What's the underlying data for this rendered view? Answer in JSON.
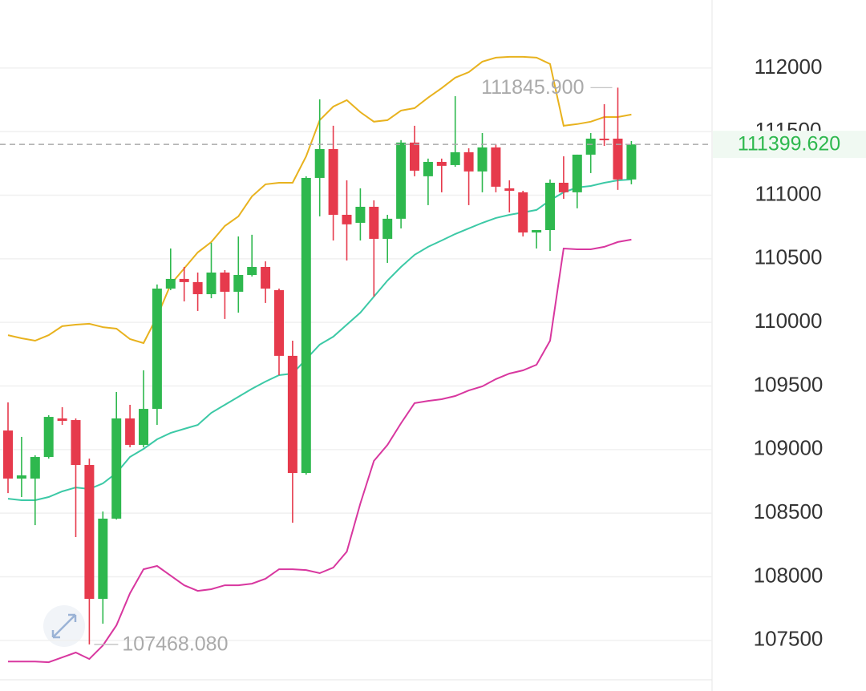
{
  "chart_data": {
    "type": "candlestick",
    "ylim": [
      107190,
      112535
    ],
    "yticks": [
      107500,
      108000,
      108500,
      109000,
      109500,
      110000,
      110500,
      111000,
      111500,
      112000
    ],
    "grid": true,
    "up_color": "#2eb84e",
    "down_color": "#e63a4c",
    "open": [
      109150,
      108772,
      108772,
      108942,
      109245,
      109232,
      108879,
      107826,
      108457,
      109245,
      109037,
      109320,
      110266,
      110342,
      110317,
      110222,
      110392,
      110241,
      110373,
      110436,
      110254,
      109737,
      108816,
      111136,
      111363,
      110846,
      110783,
      110909,
      110657,
      110815,
      111414,
      111149,
      111262,
      111237,
      111338,
      111187,
      111376,
      111054,
      111023,
      110707,
      110726,
      111098,
      111023,
      111319,
      111445,
      111445,
      111124
    ],
    "high": [
      109371,
      109100,
      108955,
      109270,
      109333,
      109245,
      108929,
      108513,
      109453,
      109352,
      109623,
      110298,
      110581,
      110436,
      110392,
      110626,
      110411,
      110676,
      110689,
      110480,
      110266,
      109856,
      111149,
      111754,
      111546,
      111117,
      111054,
      110960,
      110846,
      111433,
      111546,
      111288,
      111288,
      111779,
      111369,
      111489,
      111401,
      111117,
      111035,
      110726,
      111124,
      111306,
      111319,
      111489,
      111716,
      111845.9,
      111426
    ],
    "low": [
      108658,
      108627,
      108406,
      108929,
      109194,
      108312,
      107468.08,
      107631,
      108450,
      109018,
      109018,
      109194,
      110254,
      110165,
      110090,
      110190,
      110027,
      110077,
      110361,
      110153,
      109585,
      108425,
      108803,
      110834,
      110644,
      110487,
      110644,
      110203,
      110468,
      110739,
      111149,
      110922,
      111023,
      111224,
      110922,
      111023,
      111023,
      110865,
      110676,
      110581,
      110562,
      110972,
      110897,
      111174,
      111388,
      111042,
      111086
    ],
    "close": [
      108772,
      108797,
      108942,
      109257,
      109226,
      108879,
      107826,
      108457,
      109245,
      109037,
      109320,
      110266,
      110342,
      110317,
      110222,
      110392,
      110241,
      110373,
      110436,
      110266,
      109737,
      108816,
      111136,
      111363,
      110846,
      110771,
      110909,
      110657,
      110815,
      111414,
      111193,
      111262,
      111231,
      111338,
      111187,
      111376,
      111067,
      111035,
      110707,
      110726,
      111098,
      111023,
      111319,
      111445,
      111433,
      111124,
      111399.62
    ],
    "upper_band": {
      "color": "#e8b21e",
      "values": [
        109900,
        109875,
        109856,
        109900,
        109970,
        109982,
        109989,
        109963,
        109951,
        109869,
        109837,
        110045,
        110298,
        110424,
        110550,
        110632,
        110758,
        110834,
        110991,
        111086,
        111098,
        111098,
        111306,
        111590,
        111697,
        111748,
        111653,
        111578,
        111590,
        111666,
        111685,
        111767,
        111842,
        111924,
        111968,
        112050,
        112082,
        112088,
        112088,
        112082,
        112032,
        111546,
        111559,
        111578,
        111615,
        111615,
        111634
      ]
    },
    "middle_band": {
      "color": "#3cc9a6",
      "values": [
        108614,
        108602,
        108602,
        108627,
        108671,
        108702,
        108690,
        108734,
        108816,
        108942,
        109005,
        109081,
        109131,
        109163,
        109194,
        109289,
        109352,
        109415,
        109478,
        109535,
        109585,
        109598,
        109711,
        109825,
        109888,
        109982,
        110077,
        110203,
        110329,
        110436,
        110531,
        110594,
        110644,
        110695,
        110739,
        110783,
        110821,
        110846,
        110865,
        110884,
        110960,
        111023,
        111061,
        111073,
        111098,
        111117,
        111124
      ]
    },
    "lower_band": {
      "color": "#d8379f",
      "values": [
        107334,
        107334,
        107334,
        107328,
        107366,
        107404,
        107353,
        107460,
        107618,
        107870,
        108059,
        108085,
        108009,
        107933,
        107889,
        107902,
        107933,
        107933,
        107946,
        107984,
        108059,
        108059,
        108053,
        108028,
        108072,
        108198,
        108576,
        108911,
        109037,
        109207,
        109365,
        109383,
        109396,
        109421,
        109465,
        109497,
        109554,
        109598,
        109623,
        109667,
        109856,
        110581,
        110575,
        110575,
        110594,
        110632,
        110651
      ]
    },
    "high_marker": {
      "value": 111845.9,
      "label": "111845.900"
    },
    "low_marker": {
      "value": 107468.08,
      "label": "107468.080"
    },
    "last_price": {
      "value": 111399.62,
      "label": "111399.620"
    }
  }
}
